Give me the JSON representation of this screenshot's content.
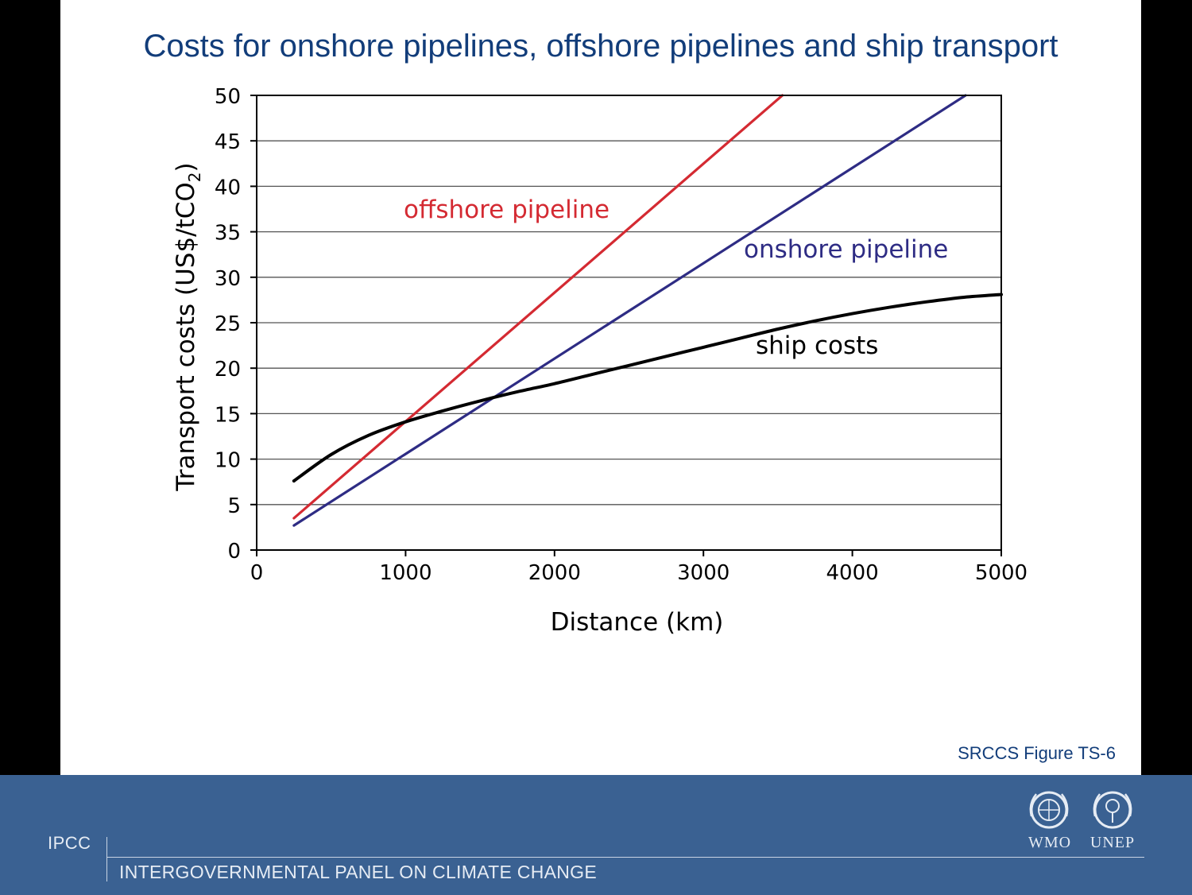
{
  "slide": {
    "title": "Costs for onshore pipelines, offshore pipelines and ship transport",
    "figure_ref": "SRCCS Figure TS-6"
  },
  "footer": {
    "abbrev": "IPCC",
    "name": "INTERGOVERNMENTAL PANEL ON CLIMATE CHANGE",
    "logos": [
      {
        "label": "WMO",
        "icon": "wmo-emblem-icon"
      },
      {
        "label": "UNEP",
        "icon": "unep-emblem-icon"
      }
    ]
  },
  "chart_data": {
    "type": "line",
    "title": "",
    "xlabel": "Distance (km)",
    "ylabel_main": "Transport costs (US$/tCO",
    "ylabel_sub": "2",
    "ylabel_end": ")",
    "xlim": [
      0,
      5000
    ],
    "ylim": [
      0,
      50
    ],
    "x_ticks": [
      0,
      1000,
      2000,
      3000,
      4000,
      5000
    ],
    "y_ticks": [
      0,
      5,
      10,
      15,
      20,
      25,
      30,
      35,
      40,
      45,
      50
    ],
    "grid": "horizontal",
    "series": [
      {
        "name": "offshore pipeline",
        "color": "#d42a32",
        "x": [
          250,
          3530
        ],
        "y": [
          3.5,
          50
        ]
      },
      {
        "name": "onshore pipeline",
        "color": "#2e2c84",
        "x": [
          250,
          4760
        ],
        "y": [
          2.7,
          50
        ]
      },
      {
        "name": "ship costs",
        "color": "#000000",
        "x": [
          250,
          500,
          750,
          1000,
          1250,
          1500,
          1750,
          2000,
          2250,
          2500,
          2750,
          3000,
          3250,
          3500,
          3750,
          4000,
          4250,
          4500,
          4750,
          5000
        ],
        "y": [
          7.6,
          10.5,
          12.6,
          14.1,
          15.3,
          16.4,
          17.4,
          18.3,
          19.3,
          20.3,
          21.3,
          22.3,
          23.3,
          24.3,
          25.2,
          26.0,
          26.7,
          27.3,
          27.8,
          28.1
        ]
      }
    ]
  }
}
